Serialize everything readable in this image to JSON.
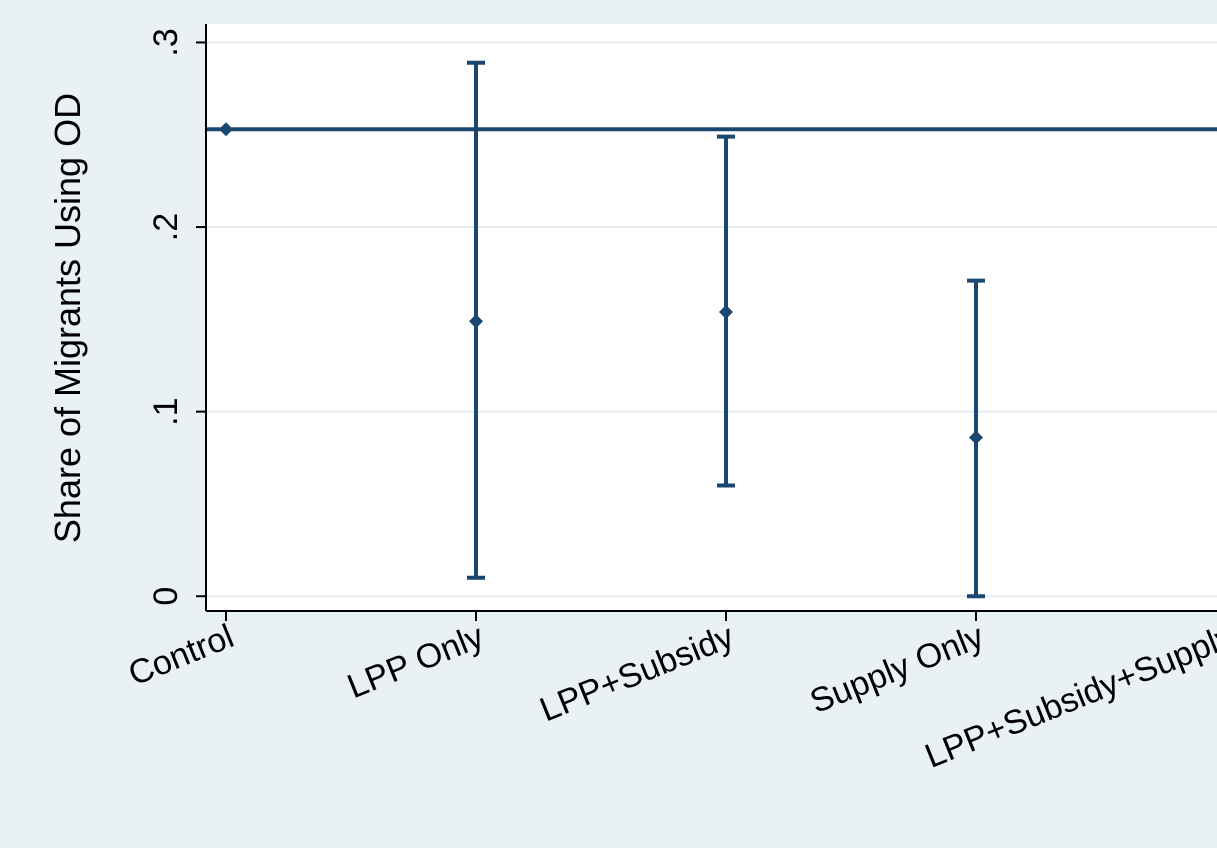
{
  "chart_data": {
    "type": "scatter",
    "categories": [
      "Control",
      "LPP Only",
      "LPP+Subsidy",
      "Supply Only",
      "LPP+Subsidy+Supply"
    ],
    "y_ticks": [
      {
        "value": 0,
        "label": "0"
      },
      {
        "value": 0.1,
        "label": ".1"
      },
      {
        "value": 0.2,
        "label": ".2"
      },
      {
        "value": 0.3,
        "label": ".3"
      }
    ],
    "ylabel": "Share of Migrants Using OD",
    "xlabel": "",
    "ylim": [
      -0.008,
      0.31
    ],
    "reference_line": {
      "value": 0.253
    },
    "series": [
      {
        "points": [
          {
            "category": "Control",
            "value": 0.253,
            "ci": null
          },
          {
            "category": "LPP Only",
            "value": 0.149,
            "ci": [
              0.01,
              0.289
            ]
          },
          {
            "category": "LPP+Subsidy",
            "value": 0.154,
            "ci": [
              0.06,
              0.249
            ]
          },
          {
            "category": "Supply Only",
            "value": 0.086,
            "ci": [
              0.0,
              0.171
            ]
          }
        ]
      }
    ],
    "colors": {
      "series": "#1a476f",
      "background": "#eaf1f4",
      "plot_area": "#ffffff",
      "grid": "#e4ecef"
    },
    "grid": true,
    "legend": "none"
  }
}
